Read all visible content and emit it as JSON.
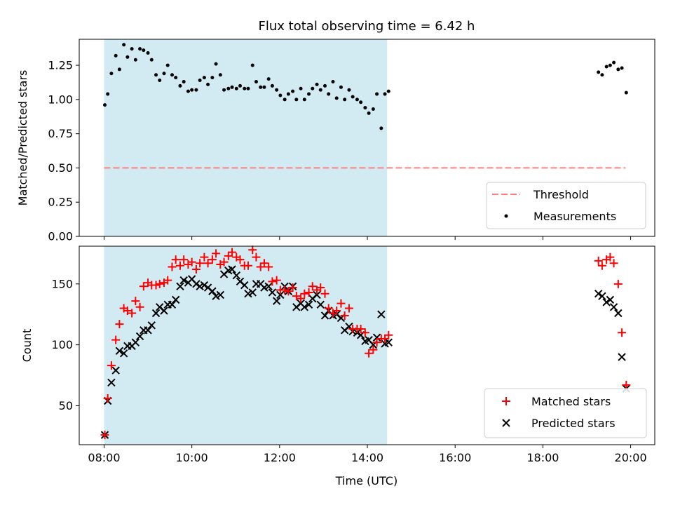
{
  "title": "Flux total observing time = 6.42 h",
  "xlabel": "Time (UTC)",
  "x_tick_labels": [
    "08:00",
    "10:00",
    "12:00",
    "14:00",
    "16:00",
    "18:00",
    "20:00"
  ],
  "colors": {
    "shade": "#add8e6",
    "threshold": "#ff7f7f",
    "measurement": "#000000",
    "matched": "#ff0000",
    "predicted": "#000000"
  },
  "chart_data": [
    {
      "type": "scatter",
      "panel": "top",
      "ylabel": "Matched/Predicted stars",
      "xlim": [
        "07:26",
        "20:33"
      ],
      "ylim": [
        0,
        1.44
      ],
      "y_ticks": [
        0.0,
        0.25,
        0.5,
        0.75,
        1.0,
        1.25
      ],
      "y_tick_labels": [
        "0.00",
        "0.25",
        "0.50",
        "0.75",
        "1.00",
        "1.25"
      ],
      "shaded_span": [
        "08:00",
        "14:27"
      ],
      "legend": {
        "position": "lower-right",
        "entries": [
          "Threshold",
          "Measurements"
        ]
      },
      "threshold": {
        "name": "Threshold",
        "value": 0.5,
        "x_range": [
          "08:00",
          "19:53"
        ]
      },
      "series": [
        {
          "name": "Measurements",
          "x": [
            "08:01",
            "08:05",
            "08:10",
            "08:16",
            "08:21",
            "08:27",
            "08:32",
            "08:38",
            "08:43",
            "08:49",
            "08:54",
            "09:00",
            "09:05",
            "09:11",
            "09:16",
            "09:22",
            "09:27",
            "09:33",
            "09:38",
            "09:44",
            "09:49",
            "09:55",
            "10:00",
            "10:06",
            "10:11",
            "10:17",
            "10:22",
            "10:28",
            "10:33",
            "10:39",
            "10:44",
            "10:50",
            "10:55",
            "11:01",
            "11:06",
            "11:12",
            "11:17",
            "11:23",
            "11:28",
            "11:34",
            "11:39",
            "11:45",
            "11:50",
            "11:56",
            "12:01",
            "12:07",
            "12:12",
            "12:18",
            "12:23",
            "12:29",
            "12:34",
            "12:40",
            "12:45",
            "12:51",
            "12:56",
            "13:02",
            "13:07",
            "13:13",
            "13:18",
            "13:24",
            "13:29",
            "13:35",
            "13:40",
            "13:46",
            "13:51",
            "13:57",
            "14:02",
            "14:08",
            "14:13",
            "14:19",
            "14:24",
            "14:29",
            "19:16",
            "19:21",
            "19:27",
            "19:32",
            "19:37",
            "19:43",
            "19:48",
            "19:54"
          ],
          "y": [
            0.96,
            1.04,
            1.19,
            1.32,
            1.22,
            1.4,
            1.31,
            1.37,
            1.29,
            1.37,
            1.36,
            1.34,
            1.29,
            1.18,
            1.14,
            1.19,
            1.25,
            1.18,
            1.16,
            1.1,
            1.13,
            1.06,
            1.07,
            1.07,
            1.14,
            1.16,
            1.11,
            1.16,
            1.26,
            1.18,
            1.07,
            1.08,
            1.09,
            1.08,
            1.1,
            1.08,
            1.08,
            1.25,
            1.13,
            1.09,
            1.09,
            1.15,
            1.1,
            1.07,
            1.03,
            1.0,
            1.04,
            1.06,
            1.0,
            1.08,
            1.0,
            1.04,
            1.08,
            1.11,
            1.07,
            1.1,
            1.04,
            1.13,
            1.01,
            1.09,
            1.0,
            1.07,
            1.02,
            1.0,
            0.98,
            0.94,
            0.9,
            0.93,
            1.04,
            0.79,
            1.04,
            1.06,
            1.2,
            1.18,
            1.24,
            1.25,
            1.27,
            1.22,
            1.23,
            1.05
          ]
        }
      ]
    },
    {
      "type": "scatter",
      "panel": "bottom",
      "ylabel": "Count",
      "xlim": [
        "07:26",
        "20:33"
      ],
      "ylim": [
        18,
        181
      ],
      "y_ticks": [
        50,
        100,
        150
      ],
      "y_tick_labels": [
        "50",
        "100",
        "150"
      ],
      "shaded_span": [
        "08:00",
        "14:27"
      ],
      "legend": {
        "position": "lower-right",
        "entries": [
          "Matched stars",
          "Predicted stars"
        ]
      },
      "series": [
        {
          "name": "Matched stars",
          "marker": "+",
          "x": [
            "08:01",
            "08:05",
            "08:10",
            "08:16",
            "08:21",
            "08:27",
            "08:32",
            "08:38",
            "08:43",
            "08:49",
            "08:54",
            "09:00",
            "09:05",
            "09:11",
            "09:16",
            "09:22",
            "09:27",
            "09:33",
            "09:38",
            "09:44",
            "09:49",
            "09:55",
            "10:00",
            "10:06",
            "10:11",
            "10:17",
            "10:22",
            "10:28",
            "10:33",
            "10:39",
            "10:44",
            "10:50",
            "10:55",
            "11:01",
            "11:06",
            "11:12",
            "11:17",
            "11:23",
            "11:28",
            "11:34",
            "11:39",
            "11:45",
            "11:50",
            "11:56",
            "12:01",
            "12:07",
            "12:12",
            "12:18",
            "12:23",
            "12:29",
            "12:34",
            "12:40",
            "12:45",
            "12:51",
            "12:56",
            "13:02",
            "13:07",
            "13:13",
            "13:18",
            "13:24",
            "13:29",
            "13:35",
            "13:40",
            "13:46",
            "13:51",
            "13:57",
            "14:02",
            "14:08",
            "14:13",
            "14:19",
            "14:24",
            "14:29",
            "19:16",
            "19:21",
            "19:27",
            "19:32",
            "19:37",
            "19:43",
            "19:48",
            "19:54"
          ],
          "y": [
            26,
            56,
            83,
            104,
            117,
            130,
            128,
            126,
            136,
            131,
            148,
            151,
            149,
            149,
            150,
            151,
            153,
            164,
            170,
            165,
            170,
            166,
            168,
            162,
            167,
            172,
            167,
            170,
            175,
            166,
            168,
            173,
            176,
            172,
            170,
            165,
            165,
            178,
            172,
            164,
            167,
            164,
            152,
            153,
            145,
            145,
            144,
            147,
            140,
            138,
            142,
            143,
            148,
            145,
            147,
            142,
            130,
            126,
            128,
            134,
            124,
            130,
            113,
            113,
            113,
            110,
            93,
            96,
            102,
            105,
            105,
            108,
            169,
            165,
            170,
            172,
            167,
            150,
            110,
            67
          ]
        },
        {
          "name": "Predicted stars",
          "marker": "x",
          "x": [
            "08:01",
            "08:05",
            "08:10",
            "08:16",
            "08:21",
            "08:27",
            "08:32",
            "08:38",
            "08:43",
            "08:49",
            "08:54",
            "09:00",
            "09:05",
            "09:11",
            "09:16",
            "09:22",
            "09:27",
            "09:33",
            "09:38",
            "09:44",
            "09:49",
            "09:55",
            "10:00",
            "10:06",
            "10:11",
            "10:17",
            "10:22",
            "10:28",
            "10:33",
            "10:39",
            "10:44",
            "10:50",
            "10:55",
            "11:01",
            "11:06",
            "11:12",
            "11:17",
            "11:23",
            "11:28",
            "11:34",
            "11:39",
            "11:45",
            "11:50",
            "11:56",
            "12:01",
            "12:07",
            "12:12",
            "12:18",
            "12:23",
            "12:29",
            "12:34",
            "12:40",
            "12:45",
            "12:51",
            "12:56",
            "13:02",
            "13:07",
            "13:13",
            "13:18",
            "13:24",
            "13:29",
            "13:35",
            "13:40",
            "13:46",
            "13:51",
            "13:57",
            "14:02",
            "14:08",
            "14:13",
            "14:19",
            "14:24",
            "14:29",
            "19:16",
            "19:21",
            "19:27",
            "19:32",
            "19:37",
            "19:43",
            "19:48",
            "19:54"
          ],
          "y": [
            26,
            54,
            69,
            79,
            95,
            93,
            99,
            99,
            102,
            107,
            112,
            112,
            116,
            126,
            131,
            128,
            133,
            133,
            137,
            148,
            153,
            151,
            154,
            150,
            148,
            149,
            147,
            144,
            140,
            141,
            158,
            161,
            162,
            157,
            152,
            149,
            142,
            143,
            150,
            150,
            147,
            148,
            143,
            136,
            141,
            148,
            144,
            148,
            131,
            134,
            131,
            133,
            138,
            141,
            133,
            124,
            128,
            124,
            125,
            122,
            112,
            115,
            111,
            110,
            108,
            103,
            104,
            100,
            106,
            125,
            101,
            102,
            142,
            140,
            135,
            137,
            131,
            126,
            90,
            64
          ]
        }
      ]
    }
  ]
}
